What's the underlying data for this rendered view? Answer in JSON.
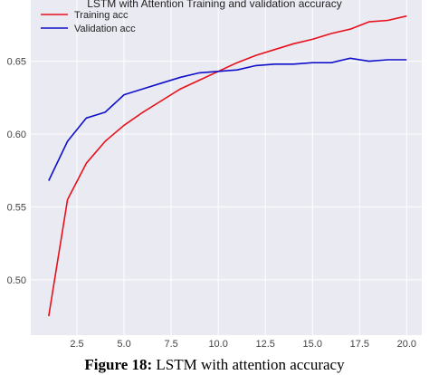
{
  "chart_data": {
    "type": "line",
    "title": "LSTM with Attention Training and validation accuracy",
    "xlabel": "",
    "ylabel": "",
    "xlim": [
      0.05,
      20.8
    ],
    "ylim": [
      0.462,
      0.692
    ],
    "x_ticks": [
      2.5,
      5.0,
      7.5,
      10.0,
      12.5,
      15.0,
      17.5,
      20.0
    ],
    "x_tick_labels": [
      "2.5",
      "5.0",
      "7.5",
      "10.0",
      "12.5",
      "15.0",
      "17.5",
      "20.0"
    ],
    "y_ticks": [
      0.5,
      0.55,
      0.6,
      0.65
    ],
    "y_tick_labels": [
      "0.50",
      "0.55",
      "0.60",
      "0.65"
    ],
    "grid": true,
    "background": "#eaeaf2",
    "legend": "top-left",
    "x": [
      1,
      2,
      3,
      4,
      5,
      6,
      7,
      8,
      9,
      10,
      11,
      12,
      13,
      14,
      15,
      16,
      17,
      18,
      19,
      20
    ],
    "series": [
      {
        "name": "Training acc",
        "color": "#e8101a",
        "values": [
          0.475,
          0.555,
          0.58,
          0.595,
          0.606,
          0.615,
          0.623,
          0.631,
          0.637,
          0.643,
          0.649,
          0.654,
          0.658,
          0.662,
          0.665,
          0.669,
          0.672,
          0.677,
          0.678,
          0.681
        ]
      },
      {
        "name": "Validation acc",
        "color": "#1010c8",
        "values": [
          0.568,
          0.595,
          0.611,
          0.615,
          0.627,
          0.631,
          0.635,
          0.639,
          0.642,
          0.643,
          0.644,
          0.647,
          0.648,
          0.648,
          0.649,
          0.649,
          0.652,
          0.65,
          0.651,
          0.651
        ]
      }
    ]
  },
  "caption": {
    "label": "Figure 18:",
    "text": " LSTM with attention accuracy"
  }
}
